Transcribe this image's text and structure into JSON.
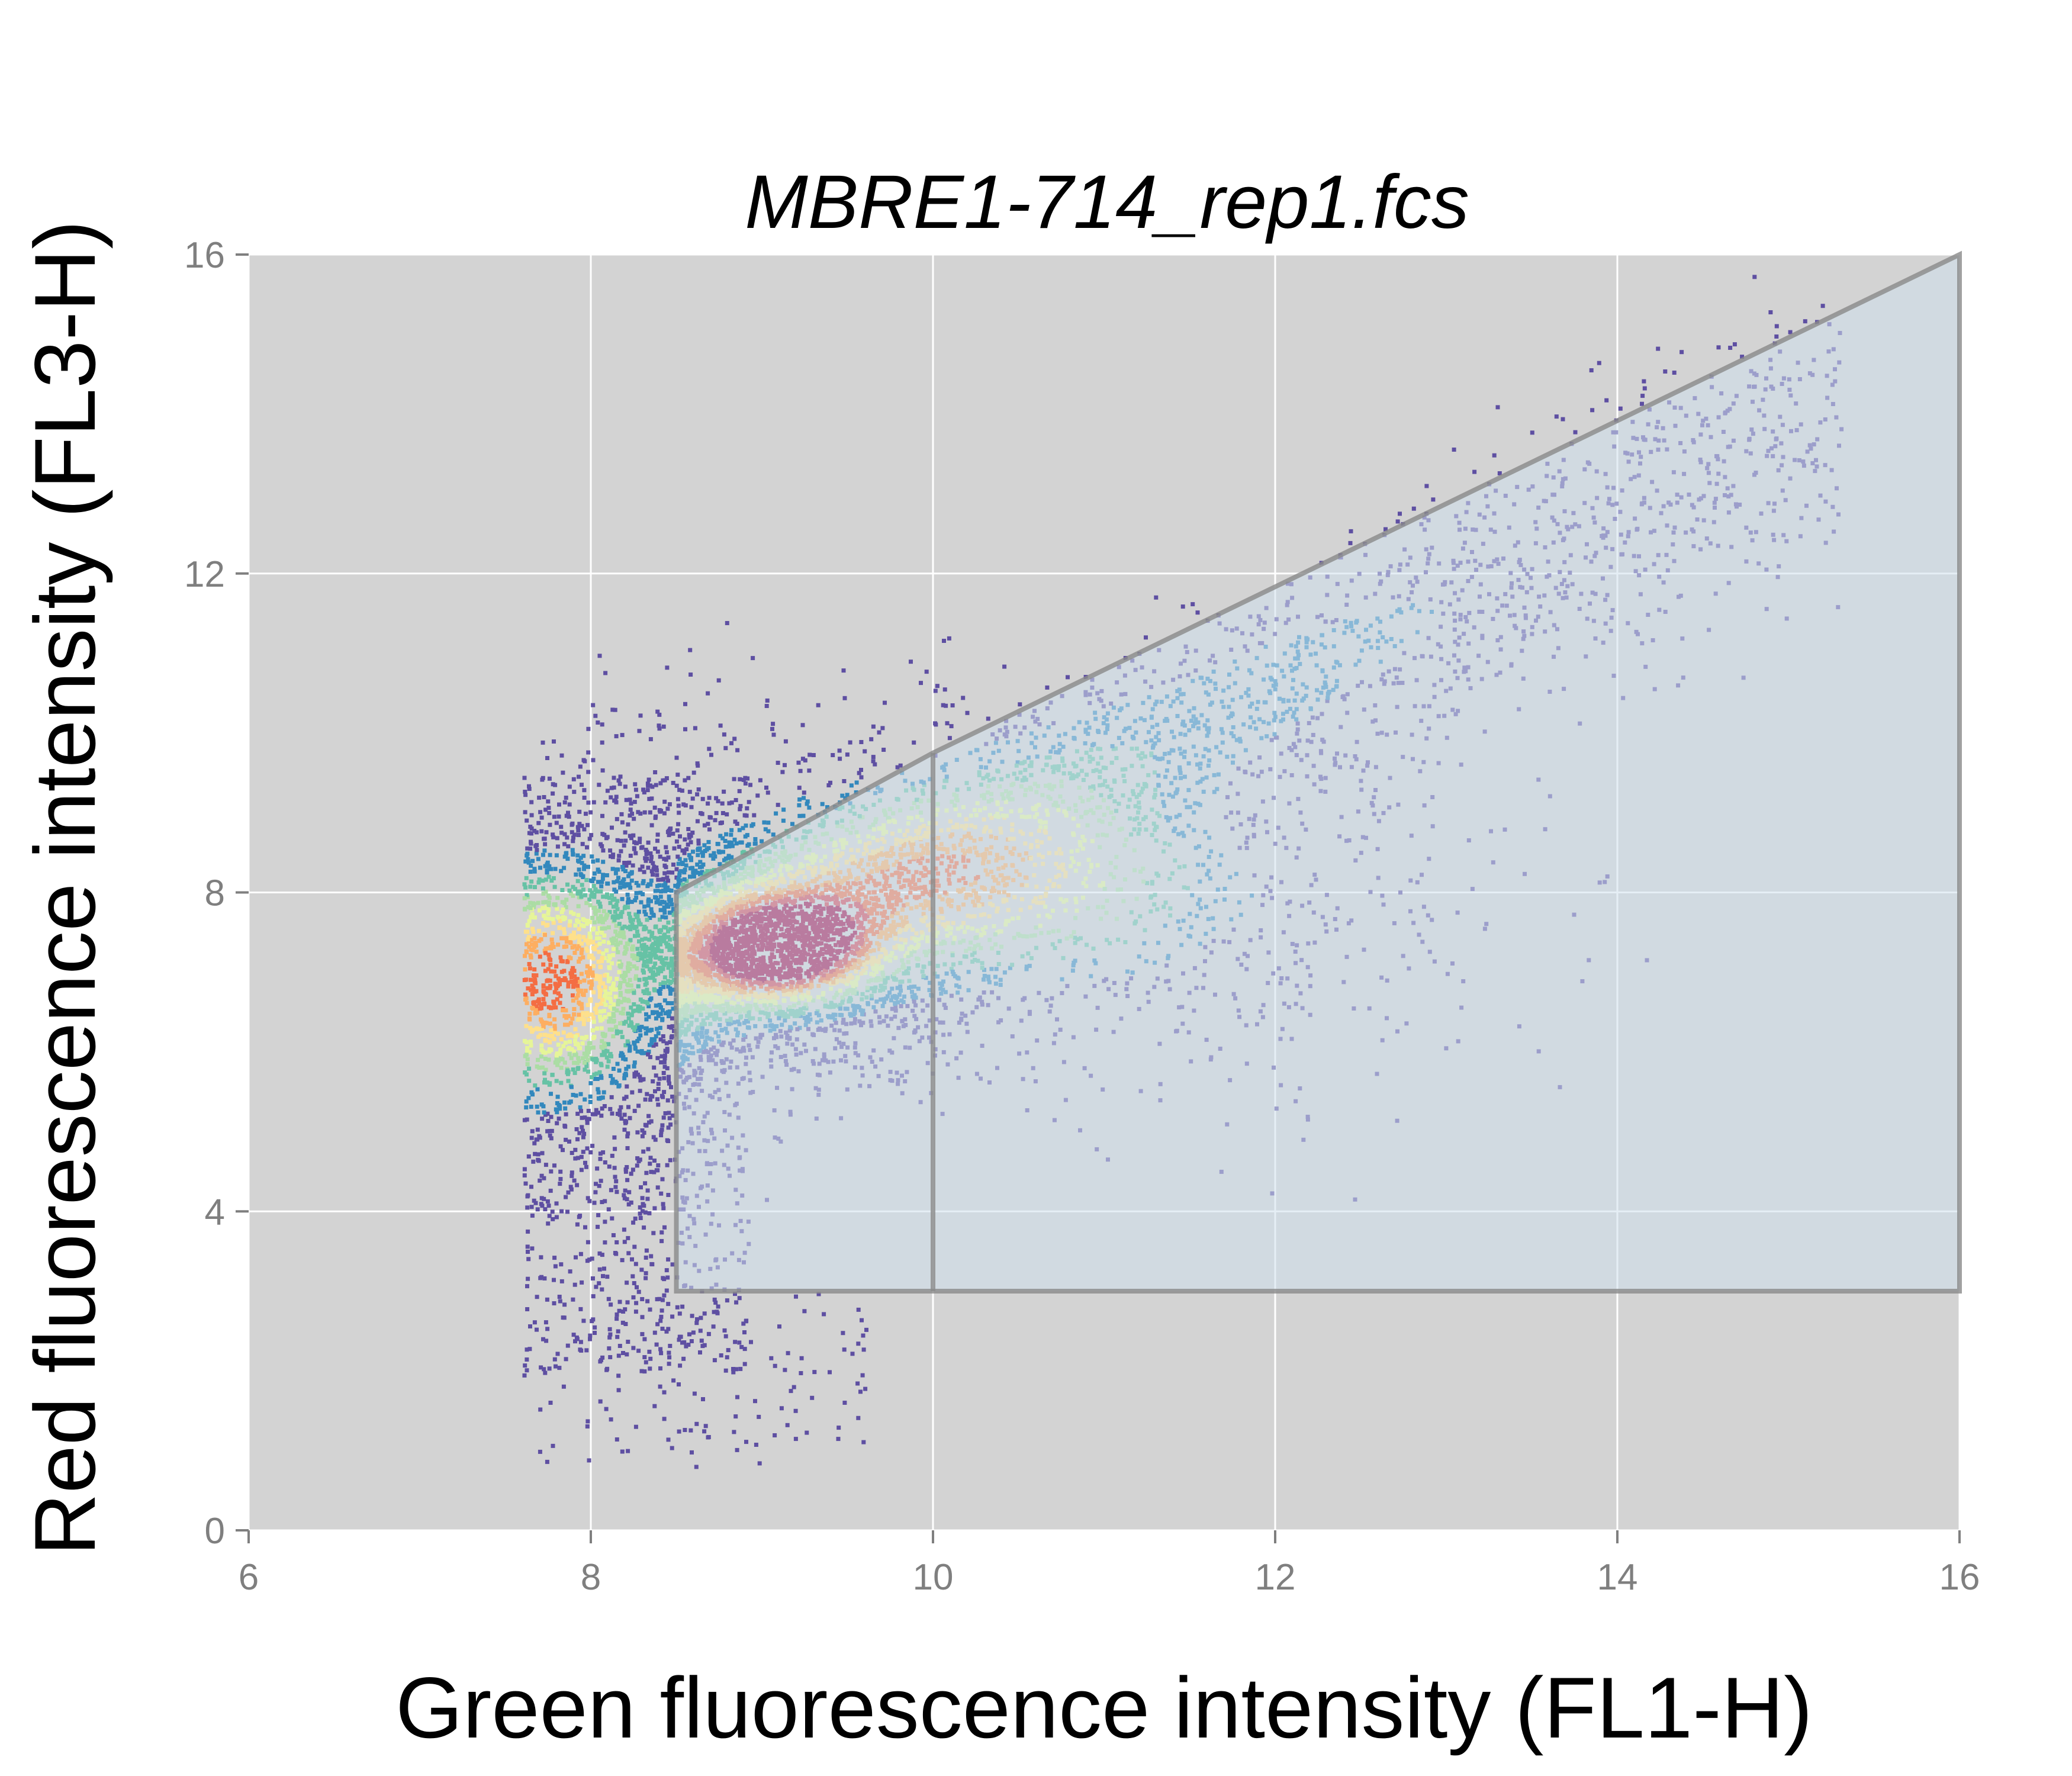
{
  "chart_data": {
    "type": "scatter",
    "subtype": "hexbin-density",
    "title": "MBRE1-714_rep1.fcs",
    "xlabel": "Green fluorescence intensity (FL1-H)",
    "ylabel": "Red fluorescence intensity (FL3-H)",
    "xlim": [
      6,
      16
    ],
    "ylim": [
      0,
      16
    ],
    "x_ticks": [
      6,
      8,
      10,
      12,
      14,
      16
    ],
    "y_ticks": [
      0,
      4,
      8,
      12,
      16
    ],
    "grid": true,
    "legend": "none",
    "colors": {
      "panel_background": "#d3d3d3",
      "grid": "#ffffff",
      "gate_fill": "#cfe0ec",
      "gate_stroke": "#8a8a8a",
      "density_scale": [
        "#5e4fa2",
        "#3288bd",
        "#66c2a5",
        "#abdda4",
        "#e6f598",
        "#fee08b",
        "#fdae61",
        "#f46d43",
        "#d53e4f",
        "#9e0142"
      ]
    },
    "gate_polygon": [
      [
        8.5,
        3
      ],
      [
        8.5,
        8
      ],
      [
        10,
        9.75
      ],
      [
        16,
        16
      ],
      [
        16,
        3
      ]
    ],
    "gate_divider": [
      [
        10,
        3
      ],
      [
        10,
        9.75
      ]
    ],
    "density_clusters": [
      {
        "cx": 9.1,
        "cy": 7.3,
        "sx": 0.35,
        "sy": 0.42,
        "weight": 1.0
      },
      {
        "cx": 7.75,
        "cy": 6.9,
        "sx": 0.35,
        "sy": 0.85,
        "weight": 0.8
      },
      {
        "cx": 10.3,
        "cy": 8.1,
        "sx": 0.9,
        "sy": 0.75,
        "weight": 0.55
      }
    ],
    "main_ridge": {
      "x_start": 8.5,
      "y_start": 7.0,
      "x_end": 15.3,
      "y_end": 14.0
    },
    "x_min_data": 7.6
  }
}
